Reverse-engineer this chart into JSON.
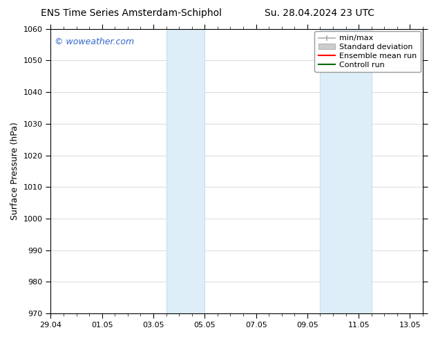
{
  "title_left": "ENS Time Series Amsterdam-Schiphol",
  "title_right": "Su. 28.04.2024 23 UTC",
  "ylabel": "Surface Pressure (hPa)",
  "watermark": "© woweather.com",
  "watermark_color": "#3366cc",
  "ylim": [
    970,
    1060
  ],
  "yticks": [
    970,
    980,
    990,
    1000,
    1010,
    1020,
    1030,
    1040,
    1050,
    1060
  ],
  "xlim_start": 0.0,
  "xlim_end": 14.5,
  "xtick_labels": [
    "29.04",
    "01.05",
    "03.05",
    "05.05",
    "07.05",
    "09.05",
    "11.05",
    "13.05"
  ],
  "xtick_positions": [
    0.0,
    2.0,
    4.0,
    6.0,
    8.0,
    10.0,
    12.0,
    14.0
  ],
  "shaded_regions": [
    {
      "xmin": 4.5,
      "xmax": 6.0
    },
    {
      "xmin": 10.5,
      "xmax": 12.5
    }
  ],
  "shaded_color": "#ddeef8",
  "shaded_edge_color": "#c5ddf0",
  "bg_color": "#ffffff",
  "grid_color": "#cccccc",
  "grid_alpha": 1.0,
  "font_size_title": 10,
  "font_size_label": 9,
  "font_size_tick": 8,
  "font_size_legend": 8,
  "font_size_watermark": 9
}
